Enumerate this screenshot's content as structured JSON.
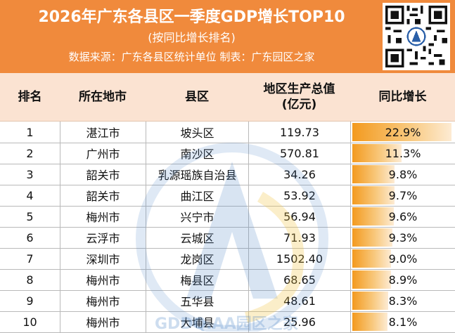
{
  "header": {
    "title": "2026年广东各县区一季度GDP增长TOP10",
    "subtitle": "(按同比增长排名)",
    "source": "数据来源：广东各县区统计单位 制表：广东园区之家"
  },
  "table": {
    "columns": [
      "排名",
      "所在地市",
      "县区",
      "地区生产总值",
      "(亿元)",
      "同比增长"
    ],
    "rows": [
      {
        "rank": "1",
        "city": "湛江市",
        "district": "坡头区",
        "gdp": "119.73",
        "growth": "22.9%",
        "growth_value": 22.9
      },
      {
        "rank": "2",
        "city": "广州市",
        "district": "南沙区",
        "gdp": "570.81",
        "growth": "11.3%",
        "growth_value": 11.3
      },
      {
        "rank": "3",
        "city": "韶关市",
        "district": "乳源瑶族自治县",
        "gdp": "34.26",
        "growth": "9.8%",
        "growth_value": 9.8
      },
      {
        "rank": "4",
        "city": "韶关市",
        "district": "曲江区",
        "gdp": "53.92",
        "growth": "9.7%",
        "growth_value": 9.7
      },
      {
        "rank": "5",
        "city": "梅州市",
        "district": "兴宁市",
        "gdp": "56.94",
        "growth": "9.6%",
        "growth_value": 9.6
      },
      {
        "rank": "6",
        "city": "云浮市",
        "district": "云城区",
        "gdp": "71.93",
        "growth": "9.3%",
        "growth_value": 9.3
      },
      {
        "rank": "7",
        "city": "深圳市",
        "district": "龙岗区",
        "gdp": "1502.40",
        "growth": "9.0%",
        "growth_value": 9.0
      },
      {
        "rank": "8",
        "city": "梅州市",
        "district": "梅县区",
        "gdp": "68.65",
        "growth": "8.9%",
        "growth_value": 8.9
      },
      {
        "rank": "9",
        "city": "梅州市",
        "district": "五华县",
        "gdp": "48.61",
        "growth": "8.3%",
        "growth_value": 8.3
      },
      {
        "rank": "10",
        "city": "梅州市",
        "district": "大埔县",
        "gdp": "25.96",
        "growth": "8.1%",
        "growth_value": 8.1
      }
    ]
  },
  "watermark": {
    "text": "GDDQ.AA园区之家"
  },
  "colors": {
    "header": "#f08a3c",
    "table_head": "#fbe3d2",
    "bar": "#f39a1f"
  }
}
